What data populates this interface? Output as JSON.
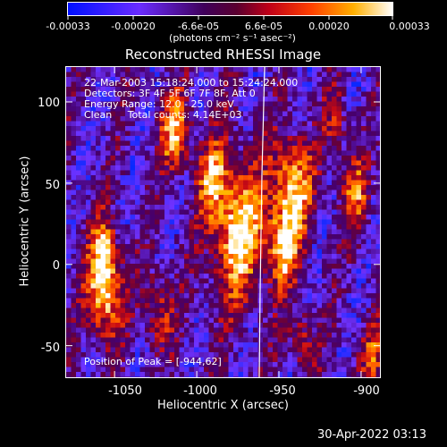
{
  "colorbar": {
    "tick_labels": [
      "-0.00033",
      "-0.00020",
      "-6.6e-05",
      "6.6e-05",
      "0.00020",
      "0.00033"
    ],
    "units_label": "(photons cm⁻² s⁻¹ asec⁻²)"
  },
  "title": "Reconstructed RHESSI Image",
  "info": {
    "line1": "22-Mar-2003 15:18:24.000 to 15:24:24.000",
    "line2": "Detectors: 3F 4F 5F 6F 7F 8F, Att 0",
    "line3": "Energy Range: 12.0 - 25.0 keV",
    "line4": "Clean     Total counts: 4.14E+03"
  },
  "peak_label": "Position of Peak = [-944,62]",
  "xlabel": "Heliocentric X (arcsec)",
  "ylabel": "Heliocentric Y (arcsec)",
  "x_ticks": [
    "-1050",
    "-1000",
    "-950",
    "-900"
  ],
  "y_ticks": [
    "100",
    "50",
    "0",
    "-50"
  ],
  "timestamp": "30-Apr-2022 03:13",
  "chart_data": {
    "type": "heatmap",
    "title": "Reconstructed RHESSI Image",
    "xlabel": "Heliocentric X (arcsec)",
    "ylabel": "Heliocentric Y (arcsec)",
    "xlim": [
      -1080,
      -888
    ],
    "ylim": [
      -70,
      122
    ],
    "x_ticks": [
      -1050,
      -1000,
      -950,
      -900
    ],
    "y_ticks": [
      -50,
      0,
      50,
      100
    ],
    "colorbar_range": [
      -0.00033,
      0.00033
    ],
    "colorbar_ticks": [
      -0.00033,
      -0.0002,
      -6.6e-05,
      6.6e-05,
      0.0002,
      0.00033
    ],
    "peak_position": [
      -944,
      62
    ],
    "colormap": [
      "#0000ff",
      "#7a2cff",
      "#3a0060",
      "#8a0030",
      "#ff2000",
      "#ffa000",
      "#ffffff"
    ],
    "limb_color": "#ffffff"
  }
}
